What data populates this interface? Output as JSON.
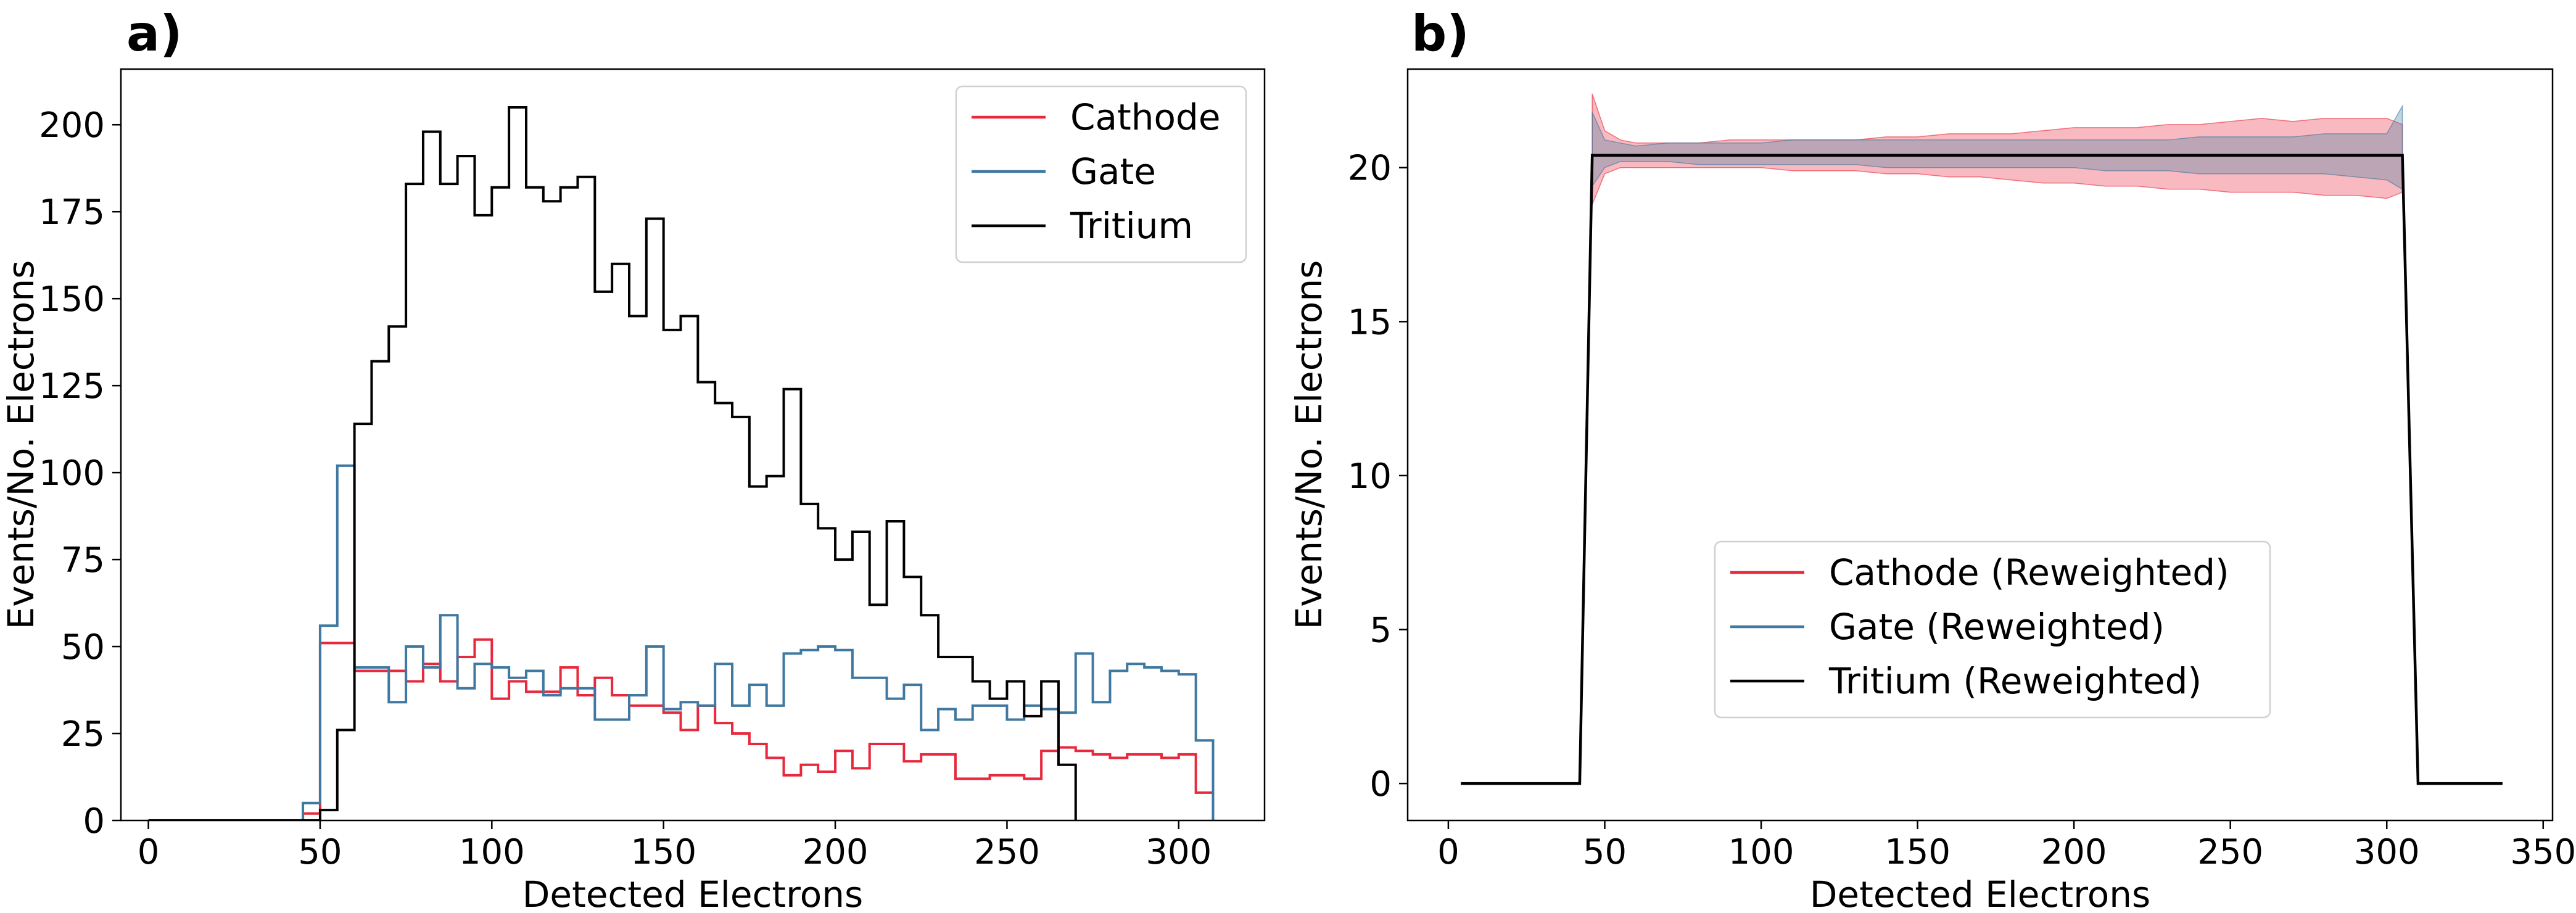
{
  "chart_data": [
    {
      "type": "line",
      "panel_label": "a)",
      "xlabel": "Detected Electrons",
      "ylabel": "Events/No. Electrons",
      "xlim": [
        -8,
        325
      ],
      "ylim": [
        0,
        216
      ],
      "xticks": [
        0,
        50,
        100,
        150,
        200,
        250,
        300
      ],
      "yticks": [
        0,
        25,
        50,
        75,
        100,
        125,
        150,
        175,
        200
      ],
      "legend_position": "upper right",
      "bin_edges": [
        0,
        5,
        10,
        15,
        20,
        25,
        30,
        35,
        40,
        45,
        50,
        55,
        60,
        65,
        70,
        75,
        80,
        85,
        90,
        95,
        100,
        105,
        110,
        115,
        120,
        125,
        130,
        135,
        140,
        145,
        150,
        155,
        160,
        165,
        170,
        175,
        180,
        185,
        190,
        195,
        200,
        205,
        210,
        215,
        220,
        225,
        230,
        235,
        240,
        245,
        250,
        255,
        260,
        265,
        270,
        275,
        280,
        285,
        290,
        295,
        300,
        305,
        310
      ],
      "series": [
        {
          "name": "Cathode",
          "color": "#e8283c",
          "values": [
            0,
            0,
            0,
            0,
            0,
            0,
            0,
            0,
            0,
            2,
            51,
            51,
            43,
            43,
            43,
            40,
            45,
            40,
            47,
            52,
            35,
            40,
            37,
            37,
            44,
            36,
            41,
            36,
            33,
            33,
            31,
            26,
            33,
            28,
            25,
            22,
            18,
            13,
            16,
            14,
            20,
            15,
            22,
            22,
            17,
            19,
            19,
            12,
            12,
            13,
            13,
            12,
            20,
            21,
            20,
            19,
            18,
            19,
            19,
            18,
            19,
            8
          ]
        },
        {
          "name": "Gate",
          "color": "#3f78a0",
          "values": [
            0,
            0,
            0,
            0,
            0,
            0,
            0,
            0,
            0,
            5,
            56,
            102,
            44,
            44,
            34,
            50,
            44,
            59,
            38,
            45,
            44,
            41,
            43,
            36,
            38,
            38,
            29,
            29,
            36,
            50,
            32,
            34,
            33,
            45,
            33,
            39,
            33,
            48,
            49,
            50,
            49,
            41,
            41,
            35,
            39,
            26,
            32,
            29,
            33,
            33,
            29,
            33,
            32,
            31,
            48,
            34,
            43,
            45,
            44,
            43,
            42,
            23
          ]
        },
        {
          "name": "Tritium",
          "color": "#000000",
          "values": [
            0,
            0,
            0,
            0,
            0,
            0,
            0,
            0,
            0,
            0,
            3,
            26,
            114,
            132,
            142,
            183,
            198,
            183,
            191,
            174,
            182,
            205,
            182,
            178,
            182,
            185,
            152,
            160,
            145,
            173,
            141,
            145,
            126,
            120,
            116,
            96,
            99,
            124,
            91,
            84,
            75,
            83,
            62,
            86,
            70,
            59,
            47,
            47,
            40,
            35,
            40,
            30,
            40,
            16
          ]
        }
      ]
    },
    {
      "type": "line",
      "panel_label": "b)",
      "xlabel": "Detected Electrons",
      "ylabel": "Events/No. Electrons",
      "xlim": [
        -13,
        353
      ],
      "ylim": [
        -1.2,
        23.2
      ],
      "xticks": [
        0,
        50,
        100,
        150,
        200,
        250,
        300,
        350
      ],
      "yticks": [
        0,
        5,
        10,
        15,
        20
      ],
      "legend_position": "lower center",
      "band_x": [
        46,
        50,
        55,
        60,
        70,
        80,
        90,
        100,
        110,
        120,
        130,
        140,
        150,
        160,
        170,
        180,
        190,
        200,
        210,
        220,
        230,
        240,
        250,
        260,
        270,
        280,
        290,
        300,
        305
      ],
      "series": [
        {
          "name": "Cathode (Reweighted)",
          "color": "#e8283c",
          "band_upper": [
            22.4,
            21.2,
            20.9,
            20.8,
            20.8,
            20.8,
            20.9,
            20.9,
            20.9,
            20.9,
            20.9,
            21.0,
            21.0,
            21.1,
            21.1,
            21.1,
            21.2,
            21.3,
            21.3,
            21.3,
            21.4,
            21.4,
            21.5,
            21.6,
            21.5,
            21.6,
            21.6,
            21.6,
            21.4
          ],
          "band_lower": [
            18.8,
            19.8,
            20.0,
            20.0,
            20.0,
            20.0,
            20.0,
            20.0,
            19.9,
            19.9,
            19.9,
            19.8,
            19.8,
            19.7,
            19.7,
            19.6,
            19.5,
            19.5,
            19.4,
            19.4,
            19.3,
            19.3,
            19.2,
            19.2,
            19.2,
            19.1,
            19.1,
            19.0,
            19.2
          ]
        },
        {
          "name": "Gate (Reweighted)",
          "color": "#3f78a0",
          "band_upper": [
            21.8,
            20.9,
            20.8,
            20.7,
            20.8,
            20.8,
            20.8,
            20.8,
            20.9,
            20.9,
            20.9,
            20.9,
            20.9,
            20.9,
            20.9,
            20.9,
            20.9,
            20.9,
            20.9,
            20.9,
            20.9,
            21.0,
            21.0,
            21.0,
            21.0,
            21.1,
            21.1,
            21.1,
            22.0
          ],
          "band_lower": [
            19.4,
            20.0,
            20.2,
            20.2,
            20.2,
            20.1,
            20.1,
            20.1,
            20.1,
            20.1,
            20.1,
            20.0,
            20.0,
            20.0,
            20.0,
            20.0,
            20.0,
            20.0,
            19.9,
            19.9,
            19.9,
            19.8,
            19.8,
            19.8,
            19.8,
            19.8,
            19.7,
            19.6,
            19.3
          ]
        },
        {
          "name": "Tritium (Reweighted)",
          "color": "#000000",
          "x": [
            4,
            42,
            46,
            305,
            310,
            337
          ],
          "y": [
            0,
            0,
            20.4,
            20.4,
            0,
            0
          ]
        }
      ]
    }
  ]
}
